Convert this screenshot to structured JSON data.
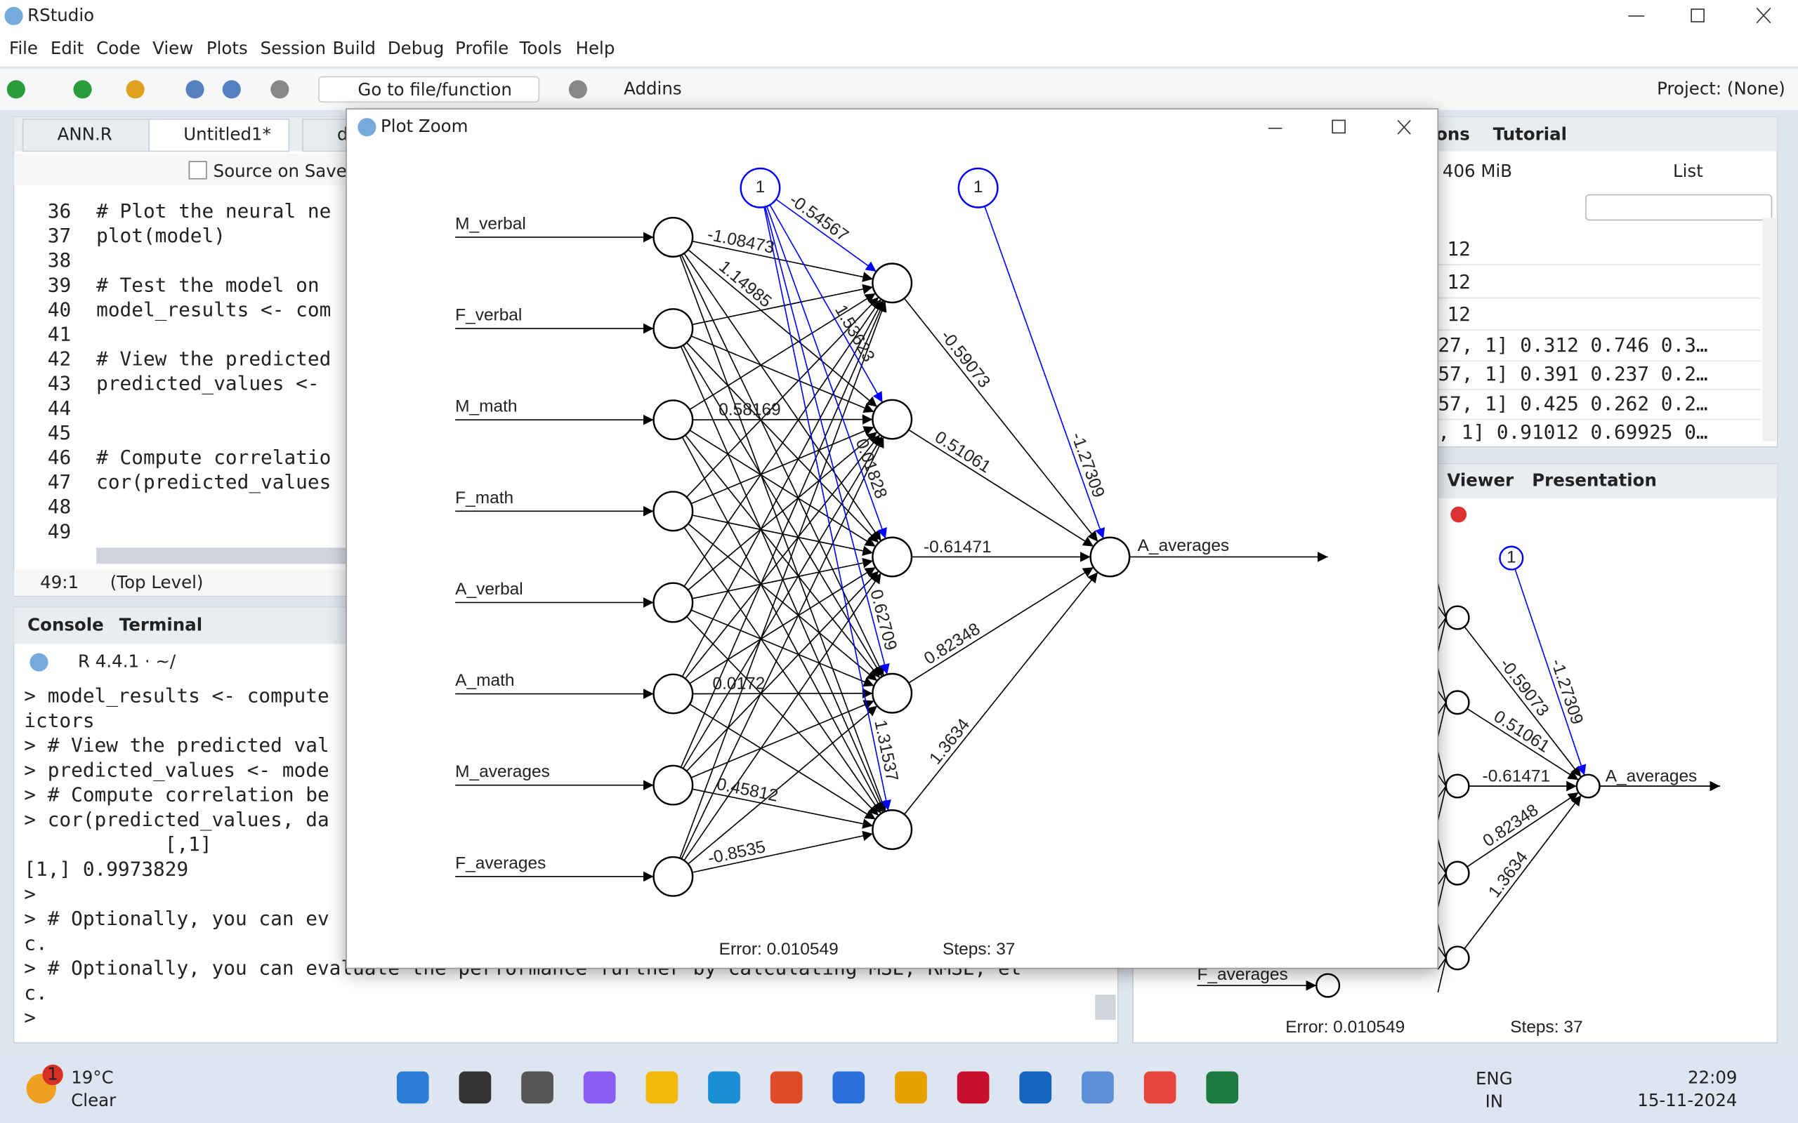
{
  "window": {
    "title": "RStudio"
  },
  "menu": [
    "File",
    "Edit",
    "Code",
    "View",
    "Plots",
    "Session",
    "Build",
    "Debug",
    "Profile",
    "Tools",
    "Help"
  ],
  "toolbar": {
    "goto": "Go to file/function",
    "addins": "Addins",
    "project": "Project: (None)"
  },
  "editor": {
    "tabs": [
      "ANN.R",
      "Untitled1*",
      "d"
    ],
    "source_on_save": "Source on Save",
    "lines": [
      {
        "n": 36,
        "code": "# Plot the neural ne"
      },
      {
        "n": 37,
        "code": "plot(model)"
      },
      {
        "n": 38
      },
      {
        "n": 39,
        "code": "# Test the model on "
      },
      {
        "n": 40,
        "code": "model_results <- com"
      },
      {
        "n": 41
      },
      {
        "n": 42,
        "code": "# View the predicted"
      },
      {
        "n": 43,
        "code": "predicted_values <- "
      },
      {
        "n": 44
      },
      {
        "n": 45
      },
      {
        "n": 46,
        "code": "# Compute correlatio"
      },
      {
        "n": 47,
        "code": "cor(predicted_values"
      },
      {
        "n": 48
      },
      {
        "n": 49
      }
    ],
    "position": "49:1",
    "scope": "(Top Level)"
  },
  "console": {
    "tabs": [
      "Console",
      "Terminal"
    ],
    "r_version": "R 4.4.1 · ~/",
    "lines": [
      {
        "text": "> model_results <- compute",
        "kind": "cmd"
      },
      {
        "text": "ictors",
        "kind": "cmd"
      },
      {
        "text": "> # View the predicted val",
        "kind": "cmd"
      },
      {
        "text": "> predicted_values <- mode",
        "kind": "cmd"
      },
      {
        "text": "> # Compute correlation be",
        "kind": "cmd"
      },
      {
        "text": "> cor(predicted_values, da",
        "kind": "cmd"
      },
      {
        "text": "            [,1]",
        "kind": "out"
      },
      {
        "text": "[1,] 0.9973829",
        "kind": "out"
      },
      {
        "text": ">",
        "kind": "cmd"
      },
      {
        "text": "> # Optionally, you can ev",
        "kind": "cmd"
      },
      {
        "text": "c.",
        "kind": "cmd"
      },
      {
        "text": "> # Optionally, you can evaluate the performance further by calculating MSE, RMSE, et",
        "kind": "cmd"
      },
      {
        "text": "c.",
        "kind": "cmd"
      },
      {
        "text": ">",
        "kind": "cmd"
      }
    ]
  },
  "environment": {
    "tabs": [
      "ons",
      "Tutorial"
    ],
    "memory": "406 MiB",
    "view": "List",
    "rows": [
      "12",
      "12",
      "12",
      "27, 1] 0.312 0.746 0.3…",
      "57, 1] 0.391 0.237 0.2…",
      "57, 1] 0.425 0.262 0.2…",
      ", 1] 0.91012 0.69925 0…"
    ]
  },
  "viewer": {
    "tabs": [
      "Viewer",
      "Presentation"
    ]
  },
  "plot": {
    "title": "Plot Zoom",
    "inputs": [
      "M_verbal",
      "F_verbal",
      "M_math",
      "F_math",
      "A_verbal",
      "A_math",
      "M_averages",
      "F_averages"
    ],
    "output": "A_averages",
    "bias": "1",
    "input_weights": [
      "-1.08473",
      "1.14985",
      "0.58169",
      "0.0172",
      "0.45812",
      "-0.8535"
    ],
    "bias_weights": [
      "-0.54567",
      "1.53623",
      "0.01828",
      "0.62709",
      "1.31537"
    ],
    "output_weights": [
      "-0.59073",
      "0.51061",
      "-0.61471",
      "0.82348",
      "1.3634"
    ],
    "output_bias_weight": "-1.27309",
    "error": "Error: 0.010549",
    "steps": "Steps: 37"
  },
  "taskbar": {
    "badge": "1",
    "temperature": "19°C",
    "condition": "Clear",
    "language": [
      "ENG",
      "IN"
    ],
    "time": "22:09",
    "date": "15-11-2024"
  }
}
